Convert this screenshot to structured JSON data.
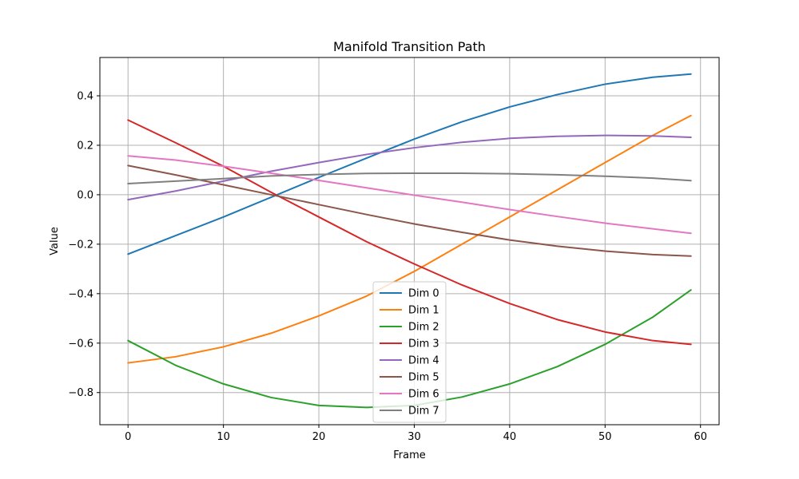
{
  "chart_data": {
    "type": "line",
    "title": "Manifold Transition Path",
    "xlabel": "Frame",
    "ylabel": "Value",
    "xlim": [
      -2.95,
      61.95
    ],
    "ylim": [
      -0.93,
      0.555
    ],
    "xticks": [
      0,
      10,
      20,
      30,
      40,
      50,
      60
    ],
    "xtick_labels": [
      "0",
      "10",
      "20",
      "30",
      "40",
      "50",
      "60"
    ],
    "yticks": [
      -0.8,
      -0.6,
      -0.4,
      -0.2,
      0.0,
      0.2,
      0.4
    ],
    "ytick_labels": [
      "−0.8",
      "−0.6",
      "−0.4",
      "−0.2",
      "0.0",
      "0.2",
      "0.4"
    ],
    "grid": true,
    "legend_position": "bottom-center",
    "x": [
      0,
      5,
      10,
      15,
      20,
      25,
      30,
      35,
      40,
      45,
      50,
      55,
      59
    ],
    "series": [
      {
        "name": "Dim 0",
        "color": "#1f77b4",
        "values": [
          -0.24,
          -0.165,
          -0.09,
          -0.01,
          0.07,
          0.148,
          0.225,
          0.295,
          0.355,
          0.405,
          0.447,
          0.475,
          0.488
        ]
      },
      {
        "name": "Dim 1",
        "color": "#ff7f0e",
        "values": [
          -0.68,
          -0.655,
          -0.615,
          -0.56,
          -0.49,
          -0.41,
          -0.31,
          -0.2,
          -0.09,
          0.02,
          0.13,
          0.24,
          0.32
        ]
      },
      {
        "name": "Dim 2",
        "color": "#2ca02c",
        "values": [
          -0.59,
          -0.69,
          -0.765,
          -0.82,
          -0.852,
          -0.86,
          -0.852,
          -0.818,
          -0.765,
          -0.695,
          -0.605,
          -0.495,
          -0.385
        ]
      },
      {
        "name": "Dim 3",
        "color": "#d62728",
        "values": [
          0.302,
          0.21,
          0.115,
          0.01,
          -0.09,
          -0.19,
          -0.28,
          -0.365,
          -0.44,
          -0.505,
          -0.555,
          -0.59,
          -0.605
        ]
      },
      {
        "name": "Dim 4",
        "color": "#9467bd",
        "values": [
          -0.02,
          0.015,
          0.055,
          0.095,
          0.13,
          0.163,
          0.19,
          0.212,
          0.228,
          0.236,
          0.24,
          0.238,
          0.232
        ]
      },
      {
        "name": "Dim 5",
        "color": "#8c564b",
        "values": [
          0.118,
          0.08,
          0.04,
          0.0,
          -0.04,
          -0.08,
          -0.118,
          -0.152,
          -0.183,
          -0.208,
          -0.228,
          -0.242,
          -0.248
        ]
      },
      {
        "name": "Dim 6",
        "color": "#e377c2",
        "values": [
          0.157,
          0.14,
          0.115,
          0.087,
          0.058,
          0.028,
          -0.002,
          -0.03,
          -0.06,
          -0.088,
          -0.115,
          -0.138,
          -0.156
        ]
      },
      {
        "name": "Dim 7",
        "color": "#7f7f7f",
        "values": [
          0.045,
          0.055,
          0.065,
          0.076,
          0.082,
          0.086,
          0.087,
          0.087,
          0.085,
          0.081,
          0.075,
          0.067,
          0.057
        ]
      }
    ]
  }
}
